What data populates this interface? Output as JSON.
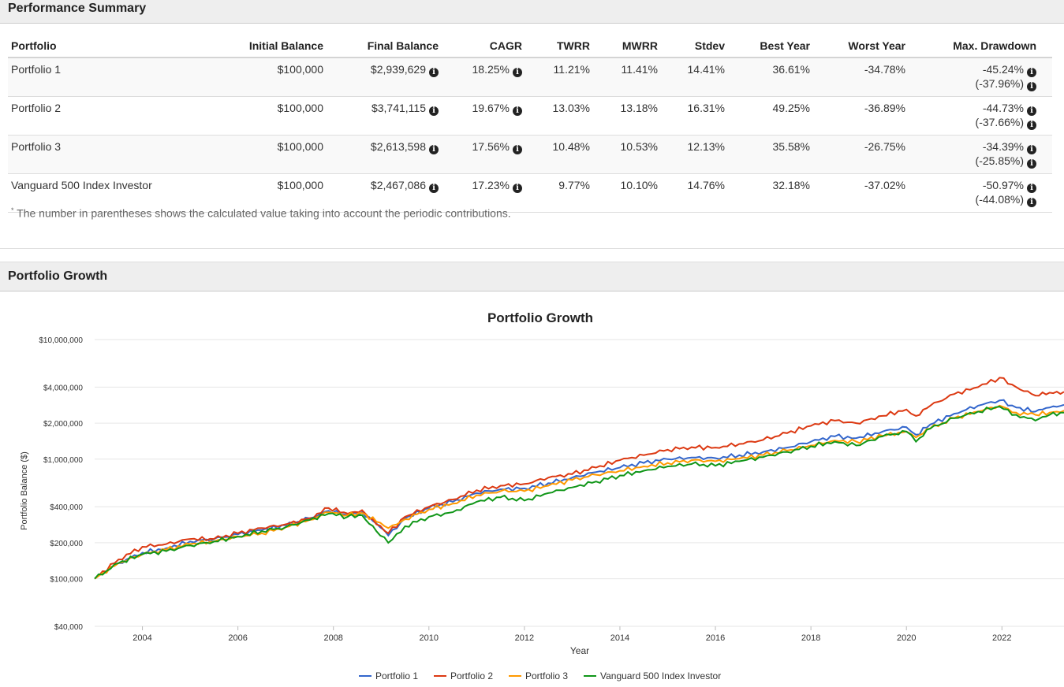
{
  "performance_summary": {
    "title": "Performance Summary",
    "columns": [
      "Portfolio",
      "Initial Balance",
      "Final Balance",
      "CAGR",
      "TWRR",
      "MWRR",
      "Stdev",
      "Best Year",
      "Worst Year",
      "Max. Drawdown"
    ],
    "rows": [
      {
        "portfolio": "Portfolio 1",
        "initial": "$100,000",
        "final": "$2,939,629",
        "cagr": "18.25%",
        "twrr": "11.21%",
        "mwrr": "11.41%",
        "stdev": "14.41%",
        "best": "36.61%",
        "worst": "-34.78%",
        "dd": "-45.24%",
        "dd2": "(-37.96%)"
      },
      {
        "portfolio": "Portfolio 2",
        "initial": "$100,000",
        "final": "$3,741,115",
        "cagr": "19.67%",
        "twrr": "13.03%",
        "mwrr": "13.18%",
        "stdev": "16.31%",
        "best": "49.25%",
        "worst": "-36.89%",
        "dd": "-44.73%",
        "dd2": "(-37.66%)"
      },
      {
        "portfolio": "Portfolio 3",
        "initial": "$100,000",
        "final": "$2,613,598",
        "cagr": "17.56%",
        "twrr": "10.48%",
        "mwrr": "10.53%",
        "stdev": "12.13%",
        "best": "35.58%",
        "worst": "-26.75%",
        "dd": "-34.39%",
        "dd2": "(-25.85%)"
      },
      {
        "portfolio": "Vanguard 500 Index Investor",
        "initial": "$100,000",
        "final": "$2,467,086",
        "cagr": "17.23%",
        "twrr": "9.77%",
        "mwrr": "10.10%",
        "stdev": "14.76%",
        "best": "32.18%",
        "worst": "-37.02%",
        "dd": "-50.97%",
        "dd2": "(-44.08%)"
      }
    ],
    "footnote_marker": "*",
    "footnote": "The number in parentheses shows the calculated value taking into account the periodic contributions."
  },
  "growth_section": {
    "title": "Portfolio Growth"
  },
  "icons": {
    "info": "info-circle-icon"
  },
  "chart_data": {
    "type": "line",
    "title": "Portfolio Growth",
    "xlabel": "Year",
    "ylabel": "Portfolio Balance ($)",
    "y_scale": "log",
    "ylim": [
      40000,
      10000000
    ],
    "xlim": [
      2003.0,
      2023.3
    ],
    "y_ticks": [
      10000000,
      4000000,
      2000000,
      1000000,
      400000,
      200000,
      100000,
      40000
    ],
    "y_tick_labels": [
      "$10,000,000",
      "$4,000,000",
      "$2,000,000",
      "$1,000,000",
      "$400,000",
      "$200,000",
      "$100,000",
      "$40,000"
    ],
    "x_ticks": [
      2004,
      2006,
      2008,
      2010,
      2012,
      2014,
      2016,
      2018,
      2020,
      2022
    ],
    "x_tick_labels": [
      "2004",
      "2006",
      "2008",
      "2010",
      "2012",
      "2014",
      "2016",
      "2018",
      "2020",
      "2022"
    ],
    "legend_position": "bottom-center",
    "grid": true,
    "x": [
      2003.0,
      2003.5,
      2004.0,
      2004.5,
      2005.0,
      2005.5,
      2006.0,
      2006.5,
      2007.0,
      2007.5,
      2007.9,
      2008.3,
      2008.6,
      2008.9,
      2009.15,
      2009.5,
      2010.0,
      2010.5,
      2011.0,
      2011.5,
      2012.0,
      2012.5,
      2013.0,
      2013.5,
      2014.0,
      2014.5,
      2015.0,
      2015.5,
      2016.0,
      2016.5,
      2017.0,
      2017.5,
      2018.0,
      2018.5,
      2018.95,
      2019.5,
      2020.0,
      2020.2,
      2020.5,
      2021.0,
      2021.5,
      2021.95,
      2022.3,
      2022.7,
      2023.0,
      2023.3
    ],
    "series": [
      {
        "name": "Portfolio 1",
        "color": "#3366cc",
        "values": [
          100000,
          135000,
          165000,
          180000,
          205000,
          215000,
          235000,
          255000,
          280000,
          320000,
          370000,
          340000,
          360000,
          290000,
          230000,
          320000,
          390000,
          440000,
          520000,
          560000,
          570000,
          630000,
          700000,
          780000,
          850000,
          930000,
          1000000,
          1030000,
          1020000,
          1080000,
          1150000,
          1250000,
          1400000,
          1550000,
          1500000,
          1700000,
          1850000,
          1600000,
          1950000,
          2400000,
          2800000,
          3100000,
          2700000,
          2500000,
          2700000,
          2850000
        ]
      },
      {
        "name": "Portfolio 2",
        "color": "#dc3912",
        "values": [
          100000,
          145000,
          185000,
          195000,
          215000,
          215000,
          240000,
          265000,
          285000,
          320000,
          390000,
          350000,
          375000,
          285000,
          240000,
          330000,
          400000,
          460000,
          550000,
          600000,
          620000,
          700000,
          750000,
          850000,
          980000,
          1080000,
          1200000,
          1260000,
          1250000,
          1340000,
          1450000,
          1650000,
          1900000,
          2100000,
          2000000,
          2300000,
          2600000,
          2300000,
          2800000,
          3500000,
          4000000,
          4800000,
          4000000,
          3400000,
          3600000,
          3650000
        ]
      },
      {
        "name": "Portfolio 3",
        "color": "#ff9900",
        "values": [
          100000,
          135000,
          160000,
          175000,
          195000,
          205000,
          225000,
          240000,
          270000,
          310000,
          360000,
          340000,
          355000,
          300000,
          265000,
          315000,
          380000,
          425000,
          500000,
          540000,
          540000,
          600000,
          670000,
          740000,
          800000,
          870000,
          930000,
          980000,
          960000,
          1010000,
          1080000,
          1180000,
          1300000,
          1430000,
          1400000,
          1570000,
          1700000,
          1520000,
          1800000,
          2200000,
          2500000,
          2800000,
          2450000,
          2350000,
          2450000,
          2550000
        ]
      },
      {
        "name": "Vanguard 500 Index Investor",
        "color": "#109618",
        "values": [
          100000,
          135000,
          160000,
          170000,
          190000,
          205000,
          225000,
          250000,
          270000,
          310000,
          350000,
          330000,
          340000,
          250000,
          200000,
          275000,
          330000,
          360000,
          440000,
          480000,
          450000,
          520000,
          580000,
          650000,
          730000,
          800000,
          870000,
          910000,
          880000,
          960000,
          1040000,
          1150000,
          1280000,
          1400000,
          1300000,
          1550000,
          1700000,
          1400000,
          1800000,
          2200000,
          2500000,
          2750000,
          2350000,
          2100000,
          2350000,
          2450000
        ]
      }
    ]
  }
}
